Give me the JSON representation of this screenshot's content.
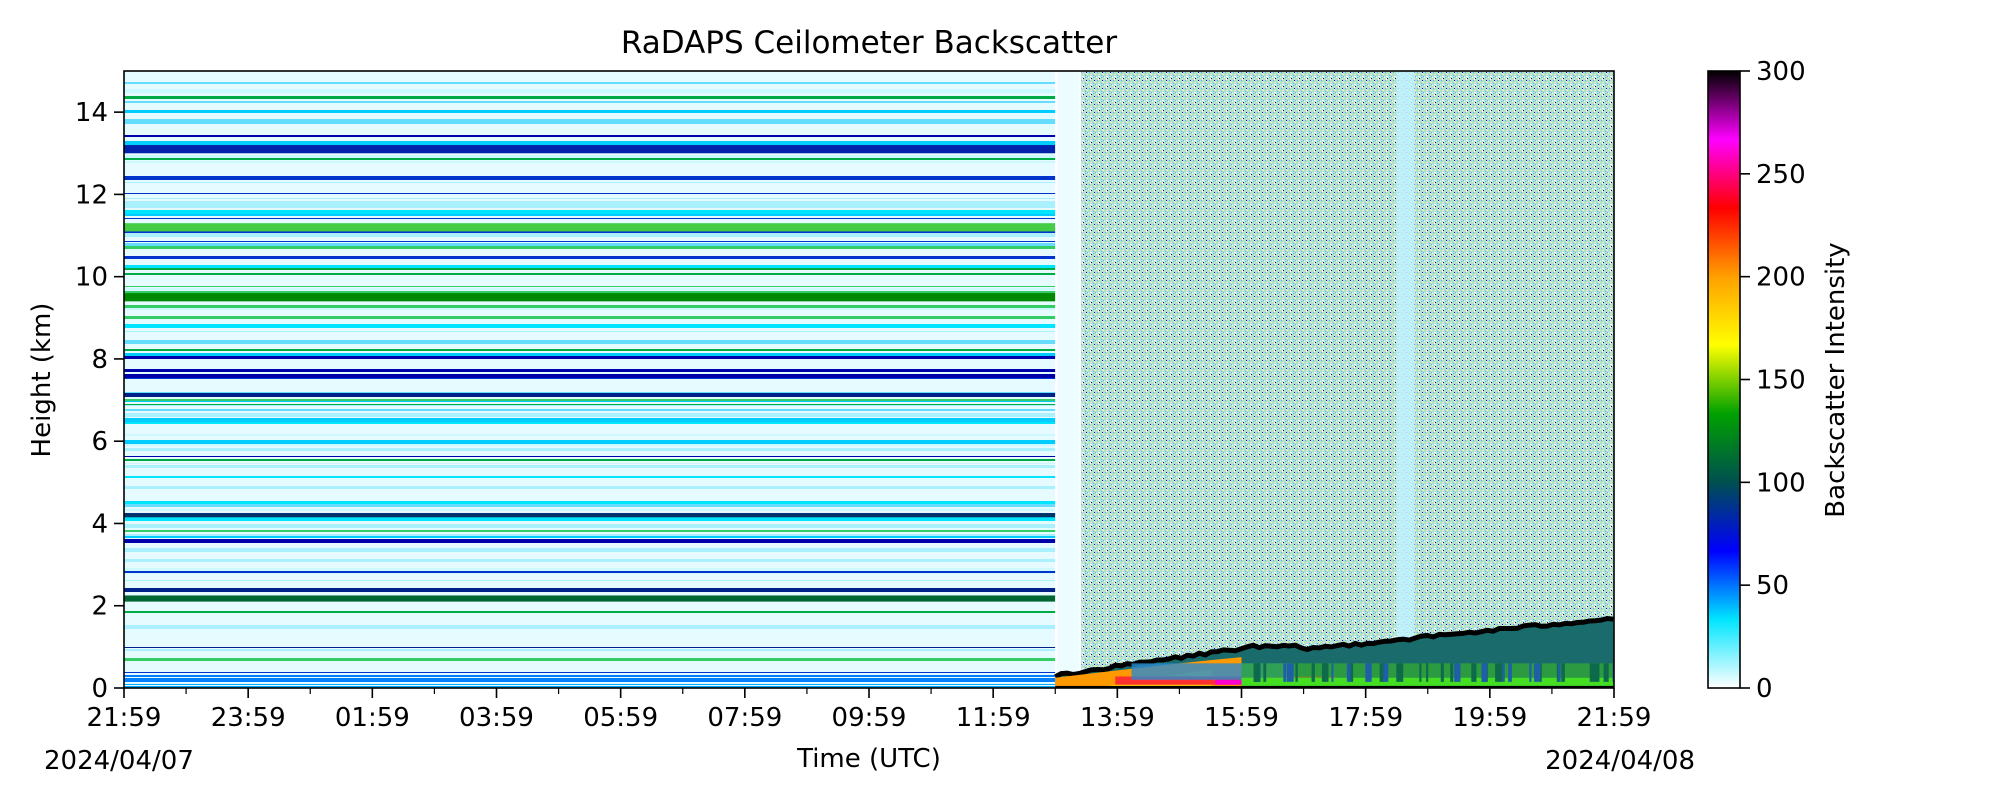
{
  "chart_data": {
    "type": "heatmap",
    "title": "RaDAPS Ceilometer Backscatter",
    "xlabel": "Time (UTC)",
    "ylabel": "Height (km)",
    "start_date": "2024/04/07",
    "end_date": "2024/04/08",
    "x_tick_labels": [
      "21:59",
      "23:59",
      "01:59",
      "03:59",
      "05:59",
      "07:59",
      "09:59",
      "11:59",
      "13:59",
      "15:59",
      "17:59",
      "19:59",
      "21:59"
    ],
    "xlim": [
      "2024-04-07 21:59",
      "2024-04-08 21:59"
    ],
    "ylim": [
      0,
      15
    ],
    "y_ticks": [
      0,
      2,
      4,
      6,
      8,
      10,
      12,
      14
    ],
    "colorbar": {
      "label": "Backscatter Intensity",
      "range": [
        0,
        300
      ],
      "ticks": [
        0,
        50,
        100,
        150,
        200,
        250,
        300
      ],
      "colors": [
        "#ffffff",
        "#00e5ff",
        "#0000ff",
        "#005050",
        "#00a000",
        "#ffff00",
        "#ffa000",
        "#ff0000",
        "#ff00ff",
        "#000000"
      ]
    },
    "regions": [
      {
        "description": "stale repeated profile (horizontal striping)",
        "time_start": "21:59",
        "time_end": "12:59",
        "height_range": [
          0,
          15
        ]
      },
      {
        "description": "no data gap",
        "time_start": "12:59",
        "time_end": "13:24",
        "height_range": [
          0,
          15
        ]
      },
      {
        "description": "noisy signal aloft",
        "time_start": "13:24",
        "time_end": "21:59",
        "height_range": [
          1,
          15
        ]
      },
      {
        "description": "boundary layer aerosol, strong near surface",
        "time_start": "12:59",
        "time_end": "21:59",
        "height_range": [
          0,
          1.8
        ]
      }
    ]
  }
}
